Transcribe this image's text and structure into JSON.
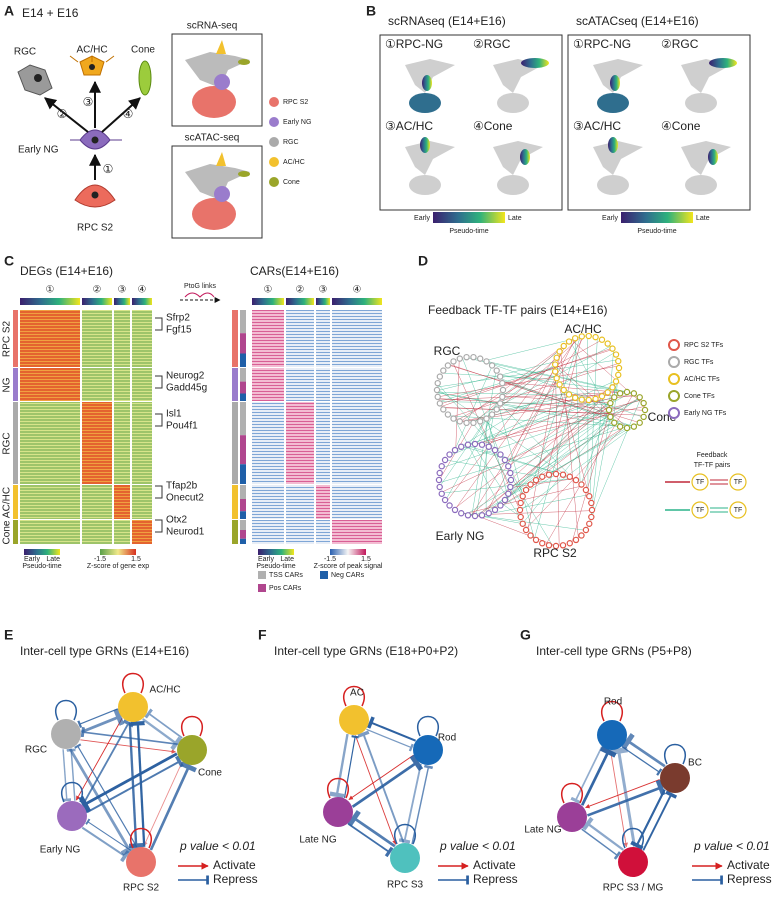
{
  "panel_a": {
    "letter": "A",
    "title": "E14 + E16",
    "cells": {
      "rgc": "RGC",
      "achc": "AC/HC",
      "cone": "Cone",
      "early_ng": "Early NG",
      "rpc": "RPC S2"
    },
    "steps": [
      "①",
      "②",
      "③",
      "④"
    ],
    "umap_titles": [
      "scRNA-seq",
      "scATAC-seq"
    ],
    "legend": [
      "RPC S2",
      "Early NG",
      "RGC",
      "AC/HC",
      "Cone"
    ]
  },
  "panel_b": {
    "letter": "B",
    "plots": [
      {
        "title": "scRNAseq (E14+E16)",
        "subplots": [
          "①RPC-NG",
          "②RGC",
          "③AC/HC",
          "④Cone"
        ]
      },
      {
        "title": "scATACseq (E14+E16)",
        "subplots": [
          "①RPC-NG",
          "②RGC",
          "③AC/HC",
          "④Cone"
        ]
      }
    ],
    "colorbar": {
      "low": "Early",
      "high": "Late",
      "label": "Pseudo-time"
    }
  },
  "panel_c": {
    "letter": "C",
    "deg_title": "DEGs (E14+E16)",
    "car_title": "CARs(E14+E16)",
    "link_label": "PtoG links",
    "columns": [
      "①",
      "②",
      "③",
      "④"
    ],
    "rows": [
      "RPC S2",
      "NG",
      "RGC",
      "AC/HC",
      "Cone"
    ],
    "genes": [
      [
        "Sfrp2",
        "Fgf15"
      ],
      [
        "Neurog2",
        "Gadd45g"
      ],
      [
        "Isl1",
        "Pou4f1"
      ],
      [
        "Tfap2b",
        "Onecut2"
      ],
      [
        "Otx2",
        "Neurod1"
      ]
    ],
    "pseudotime_bar": {
      "low": "Early",
      "high": "Late",
      "label": "Pseudo-time"
    },
    "gene_exp_bar": {
      "ticks": [
        -1.5,
        1.5
      ],
      "label": "Z-score of gene exp"
    },
    "peak_bar": {
      "ticks": [
        -1.5,
        1.5
      ],
      "label": "Z-score of peak signal"
    },
    "car_legend": [
      "TSS CARs",
      "Neg CARs",
      "Pos CARs"
    ]
  },
  "panel_d": {
    "letter": "D",
    "title": "Feedback TF-TF pairs (E14+E16)",
    "groups": [
      "RGC",
      "AC/HC",
      "Cone",
      "Early NG",
      "RPC S2"
    ],
    "legend": [
      "RPC S2 TFs",
      "RGC TFs",
      "AC/HC TFs",
      "Cone TFs",
      "Early NG TFs"
    ],
    "pairs_label": [
      "Feedback",
      "TF-TF pairs"
    ],
    "tf": "TF"
  },
  "panel_e": {
    "letter": "E",
    "title": "Inter-cell type GRNs (E14+E16)",
    "nodes": [
      "AC/HC",
      "RGC",
      "Cone",
      "Early NG",
      "RPC S2"
    ],
    "legend": {
      "p_value": "p value < 0.01",
      "activate": "Activate",
      "repress": "Repress"
    }
  },
  "panel_f": {
    "letter": "F",
    "title": "Inter-cell type GRNs (E18+P0+P2)",
    "nodes": [
      "AC",
      "Rod",
      "Late NG",
      "RPC S3"
    ],
    "legend": {
      "p_value": "p value < 0.01",
      "activate": "Activate",
      "repress": "Repress"
    }
  },
  "panel_g": {
    "letter": "G",
    "title": "Inter-cell type GRNs (P5+P8)",
    "nodes": [
      "Rod",
      "BC",
      "Late NG",
      "RPC S3 / MG"
    ],
    "legend": {
      "p_value": "p value < 0.01",
      "activate": "Activate",
      "repress": "Repress"
    }
  }
}
